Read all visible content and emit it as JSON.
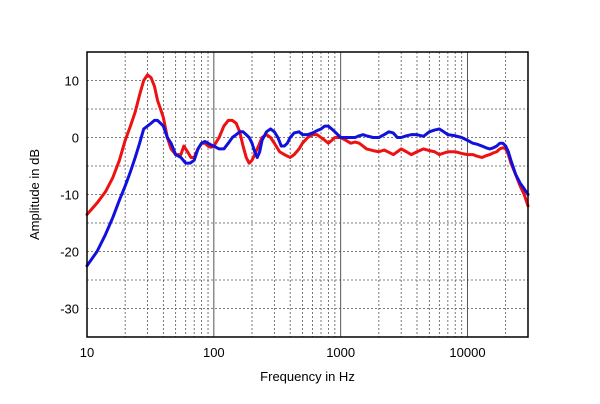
{
  "chart_data": {
    "type": "line",
    "xlabel": "Frequency in Hz",
    "ylabel": "Amplitude in dB",
    "xscale": "log",
    "xlim": [
      10,
      30000
    ],
    "ylim": [
      -35,
      15
    ],
    "grid": true,
    "x_ticks": [
      10,
      100,
      1000,
      10000
    ],
    "x_tick_labels": [
      "10",
      "100",
      "1000",
      "10000"
    ],
    "y_ticks": [
      10,
      0,
      -10,
      -20,
      -30
    ],
    "y_tick_labels": [
      "10",
      "0",
      "-10",
      "-20",
      "-30"
    ],
    "colors": {
      "red": "#ee1111",
      "blue": "#1111dd",
      "grid": "#555555"
    },
    "series": [
      {
        "color": "#ee1111",
        "points": [
          [
            10,
            -13.5
          ],
          [
            12,
            -11.5
          ],
          [
            14,
            -9.5
          ],
          [
            16,
            -7
          ],
          [
            18,
            -4
          ],
          [
            20,
            -0.5
          ],
          [
            22,
            2
          ],
          [
            24,
            4.5
          ],
          [
            26,
            7.5
          ],
          [
            28,
            10
          ],
          [
            30,
            11
          ],
          [
            32,
            10.5
          ],
          [
            34,
            9
          ],
          [
            36,
            6.5
          ],
          [
            38,
            5
          ],
          [
            40,
            3.5
          ],
          [
            43,
            0
          ],
          [
            46,
            -2
          ],
          [
            50,
            -3
          ],
          [
            55,
            -3
          ],
          [
            58,
            -1.5
          ],
          [
            62,
            -2.5
          ],
          [
            66,
            -3.5
          ],
          [
            70,
            -3.5
          ],
          [
            75,
            -2
          ],
          [
            80,
            -1
          ],
          [
            85,
            -1
          ],
          [
            90,
            -1.5
          ],
          [
            95,
            -1.7
          ],
          [
            100,
            -1.5
          ],
          [
            110,
            0
          ],
          [
            120,
            2
          ],
          [
            130,
            3
          ],
          [
            140,
            3
          ],
          [
            150,
            2.5
          ],
          [
            160,
            1
          ],
          [
            170,
            -1.5
          ],
          [
            180,
            -3.5
          ],
          [
            190,
            -4.5
          ],
          [
            200,
            -4
          ],
          [
            220,
            -2
          ],
          [
            240,
            0
          ],
          [
            260,
            0.5
          ],
          [
            280,
            0
          ],
          [
            300,
            -1
          ],
          [
            330,
            -2.5
          ],
          [
            360,
            -3
          ],
          [
            400,
            -3.5
          ],
          [
            430,
            -3
          ],
          [
            470,
            -2
          ],
          [
            500,
            -1
          ],
          [
            550,
            0
          ],
          [
            600,
            0.5
          ],
          [
            650,
            0.5
          ],
          [
            700,
            0
          ],
          [
            750,
            -0.5
          ],
          [
            800,
            -1
          ],
          [
            850,
            -0.5
          ],
          [
            900,
            0
          ],
          [
            1000,
            0
          ],
          [
            1100,
            -0.5
          ],
          [
            1200,
            -1
          ],
          [
            1300,
            -0.8
          ],
          [
            1400,
            -1
          ],
          [
            1500,
            -1.5
          ],
          [
            1600,
            -2
          ],
          [
            1800,
            -2.3
          ],
          [
            2000,
            -2.5
          ],
          [
            2200,
            -2.2
          ],
          [
            2400,
            -2.6
          ],
          [
            2600,
            -3
          ],
          [
            2800,
            -2.5
          ],
          [
            3000,
            -2
          ],
          [
            3300,
            -2.5
          ],
          [
            3600,
            -3
          ],
          [
            4000,
            -2.5
          ],
          [
            4500,
            -2
          ],
          [
            5000,
            -2.3
          ],
          [
            5500,
            -2.5
          ],
          [
            6000,
            -3
          ],
          [
            7000,
            -2.5
          ],
          [
            8000,
            -2.5
          ],
          [
            9000,
            -2.8
          ],
          [
            10000,
            -3
          ],
          [
            11000,
            -3
          ],
          [
            12000,
            -3.3
          ],
          [
            13000,
            -3.5
          ],
          [
            14000,
            -3.2
          ],
          [
            15000,
            -3
          ],
          [
            16000,
            -2.7
          ],
          [
            17000,
            -2.5
          ],
          [
            18000,
            -2
          ],
          [
            19000,
            -1.8
          ],
          [
            20000,
            -2
          ],
          [
            21000,
            -3
          ],
          [
            22000,
            -4.5
          ],
          [
            24000,
            -6.5
          ],
          [
            26000,
            -8.5
          ],
          [
            28000,
            -10
          ],
          [
            30000,
            -12
          ]
        ]
      },
      {
        "color": "#1111dd",
        "points": [
          [
            10,
            -22.5
          ],
          [
            12,
            -20
          ],
          [
            14,
            -17
          ],
          [
            16,
            -14
          ],
          [
            18,
            -11
          ],
          [
            20,
            -8.5
          ],
          [
            22,
            -6
          ],
          [
            24,
            -3.5
          ],
          [
            26,
            -1
          ],
          [
            28,
            1.5
          ],
          [
            30,
            2
          ],
          [
            32,
            2.5
          ],
          [
            34,
            3
          ],
          [
            36,
            3
          ],
          [
            38,
            2.5
          ],
          [
            40,
            2
          ],
          [
            43,
            0
          ],
          [
            46,
            -1
          ],
          [
            50,
            -3
          ],
          [
            55,
            -3.5
          ],
          [
            60,
            -4.5
          ],
          [
            65,
            -4.5
          ],
          [
            70,
            -4
          ],
          [
            75,
            -2
          ],
          [
            80,
            -1
          ],
          [
            85,
            -0.7
          ],
          [
            90,
            -1
          ],
          [
            95,
            -1.3
          ],
          [
            100,
            -1.5
          ],
          [
            110,
            -2
          ],
          [
            120,
            -2
          ],
          [
            130,
            -1
          ],
          [
            140,
            0
          ],
          [
            150,
            0.5
          ],
          [
            160,
            1
          ],
          [
            170,
            1
          ],
          [
            180,
            0.5
          ],
          [
            190,
            0
          ],
          [
            200,
            -1
          ],
          [
            210,
            -2.5
          ],
          [
            220,
            -3.5
          ],
          [
            230,
            -2.5
          ],
          [
            240,
            -0.5
          ],
          [
            260,
            1
          ],
          [
            280,
            1.5
          ],
          [
            300,
            1
          ],
          [
            320,
            0
          ],
          [
            340,
            -1.5
          ],
          [
            360,
            -1.5
          ],
          [
            380,
            -1
          ],
          [
            400,
            0
          ],
          [
            430,
            0.8
          ],
          [
            470,
            1
          ],
          [
            500,
            0.5
          ],
          [
            550,
            0.5
          ],
          [
            600,
            0.8
          ],
          [
            650,
            1.2
          ],
          [
            700,
            1.5
          ],
          [
            750,
            2
          ],
          [
            800,
            2
          ],
          [
            850,
            1.5
          ],
          [
            900,
            1
          ],
          [
            1000,
            0
          ],
          [
            1100,
            0
          ],
          [
            1200,
            0
          ],
          [
            1300,
            0
          ],
          [
            1400,
            0.3
          ],
          [
            1500,
            0.5
          ],
          [
            1600,
            0.3
          ],
          [
            1800,
            0
          ],
          [
            2000,
            0
          ],
          [
            2200,
            0.5
          ],
          [
            2400,
            1
          ],
          [
            2600,
            0.8
          ],
          [
            2800,
            0
          ],
          [
            3000,
            0
          ],
          [
            3300,
            0.3
          ],
          [
            3600,
            0.5
          ],
          [
            4000,
            0.5
          ],
          [
            4500,
            0.2
          ],
          [
            5000,
            1
          ],
          [
            5500,
            1.3
          ],
          [
            6000,
            1.5
          ],
          [
            6500,
            1
          ],
          [
            7000,
            0.5
          ],
          [
            8000,
            0.3
          ],
          [
            9000,
            0
          ],
          [
            10000,
            -0.5
          ],
          [
            11000,
            -1
          ],
          [
            12000,
            -1.2
          ],
          [
            13000,
            -1.5
          ],
          [
            14000,
            -1.8
          ],
          [
            15000,
            -2
          ],
          [
            16000,
            -1.8
          ],
          [
            17000,
            -1.5
          ],
          [
            18000,
            -1
          ],
          [
            19000,
            -1
          ],
          [
            20000,
            -1.5
          ],
          [
            21000,
            -2.5
          ],
          [
            22000,
            -4
          ],
          [
            24000,
            -6.5
          ],
          [
            26000,
            -8
          ],
          [
            28000,
            -9
          ],
          [
            30000,
            -10
          ]
        ]
      }
    ]
  }
}
